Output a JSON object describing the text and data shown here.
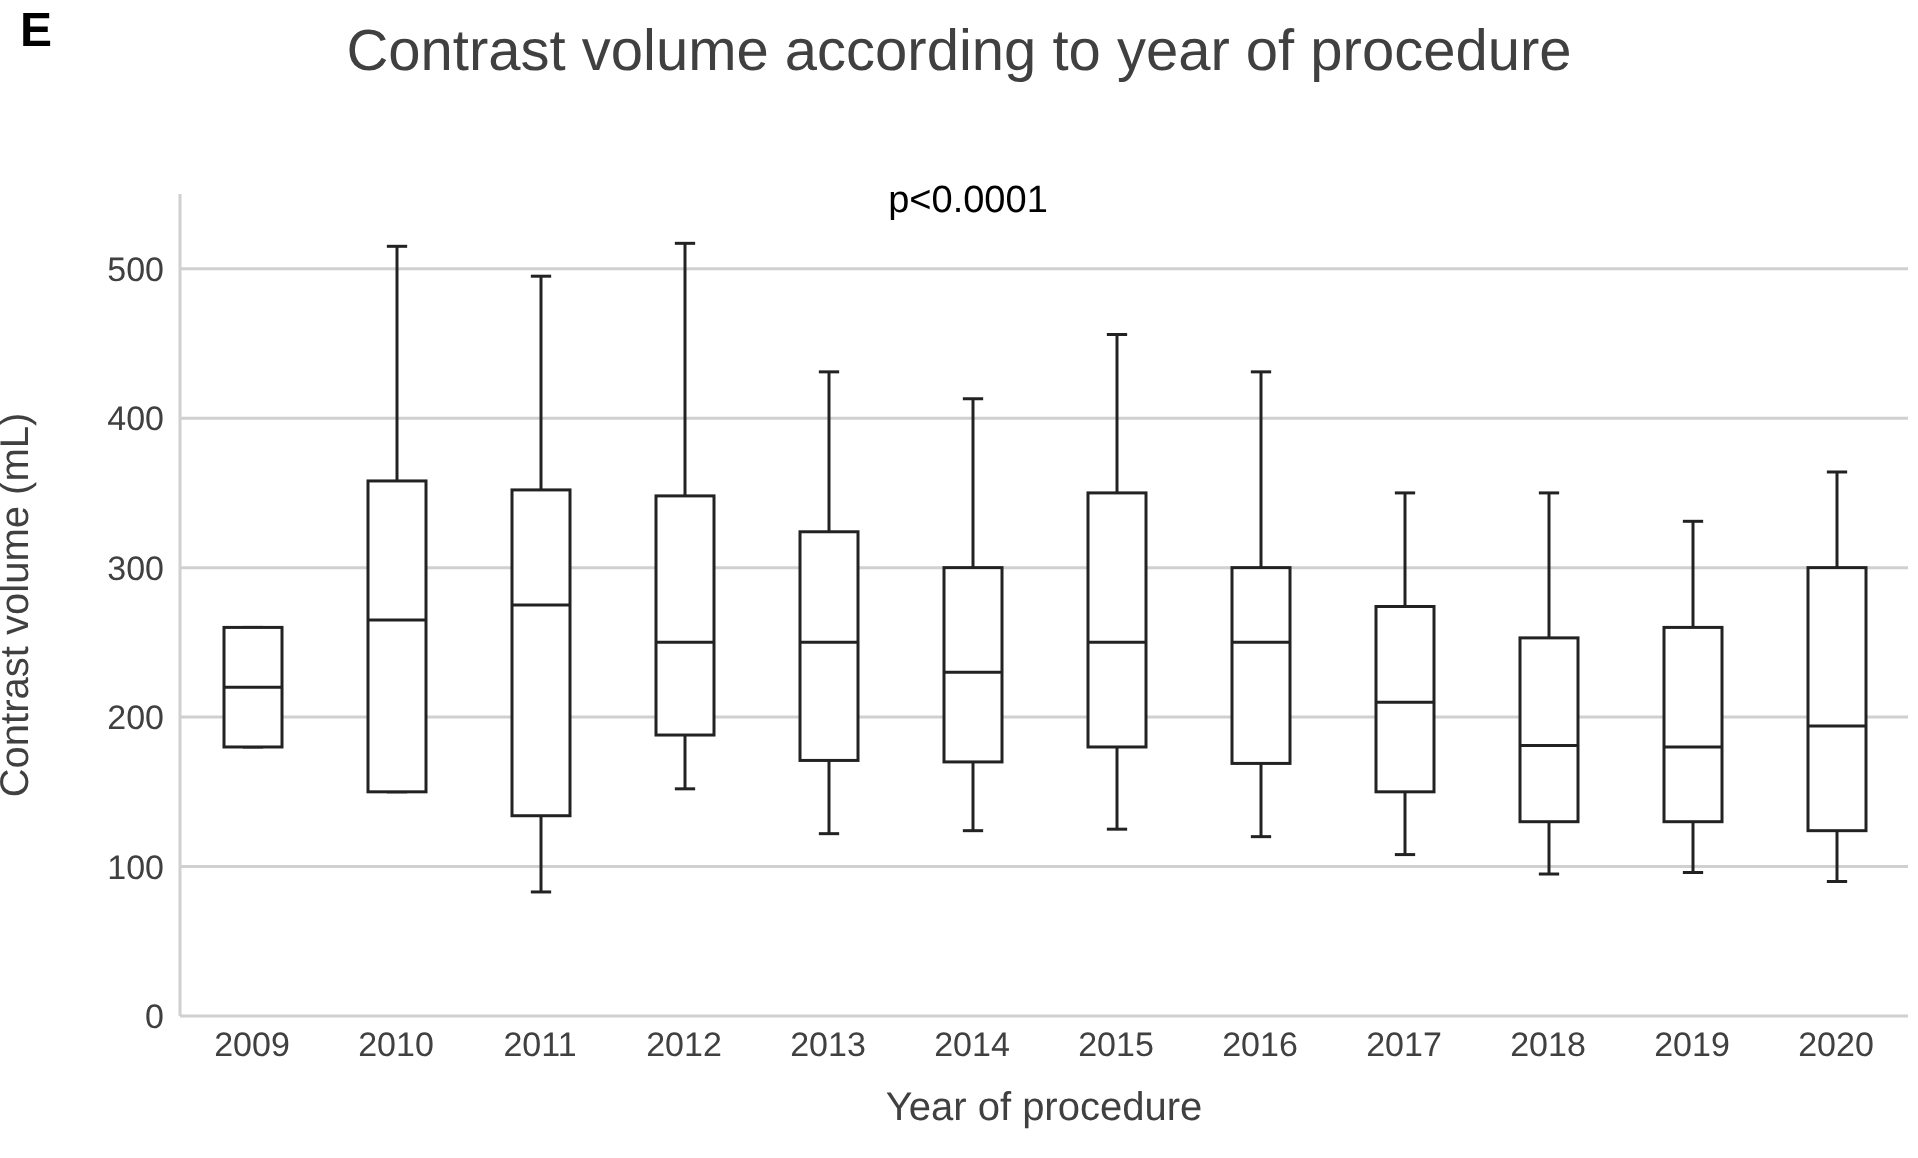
{
  "chart_data": {
    "type": "box",
    "title": "Contrast volume according to year of procedure",
    "xlabel": "Year of procedure",
    "ylabel": "Contrast volume (mL)",
    "annotations": [
      "E",
      "p<0.0001"
    ],
    "categories": [
      "2009",
      "2010",
      "2011",
      "2012",
      "2013",
      "2014",
      "2015",
      "2016",
      "2017",
      "2018",
      "2019",
      "2020"
    ],
    "boxes": [
      {
        "low": 180,
        "q1": 180,
        "median": 220,
        "q3": 260,
        "high": 260
      },
      {
        "low": 150,
        "q1": 150,
        "median": 265,
        "q3": 358,
        "high": 515
      },
      {
        "low": 83,
        "q1": 134,
        "median": 275,
        "q3": 352,
        "high": 495
      },
      {
        "low": 152,
        "q1": 188,
        "median": 250,
        "q3": 348,
        "high": 517
      },
      {
        "low": 122,
        "q1": 171,
        "median": 250,
        "q3": 324,
        "high": 431
      },
      {
        "low": 124,
        "q1": 170,
        "median": 230,
        "q3": 300,
        "high": 413
      },
      {
        "low": 125,
        "q1": 180,
        "median": 250,
        "q3": 350,
        "high": 456
      },
      {
        "low": 120,
        "q1": 169,
        "median": 250,
        "q3": 300,
        "high": 431
      },
      {
        "low": 108,
        "q1": 150,
        "median": 210,
        "q3": 274,
        "high": 350
      },
      {
        "low": 95,
        "q1": 130,
        "median": 181,
        "q3": 253,
        "high": 350
      },
      {
        "low": 96,
        "q1": 130,
        "median": 180,
        "q3": 260,
        "high": 331
      },
      {
        "low": 90,
        "q1": 124,
        "median": 194,
        "q3": 300,
        "high": 364
      }
    ],
    "color": "#222222",
    "ylim": [
      0,
      550
    ],
    "yticks": [
      0,
      100,
      200,
      300,
      400,
      500
    ],
    "grid": "y"
  }
}
